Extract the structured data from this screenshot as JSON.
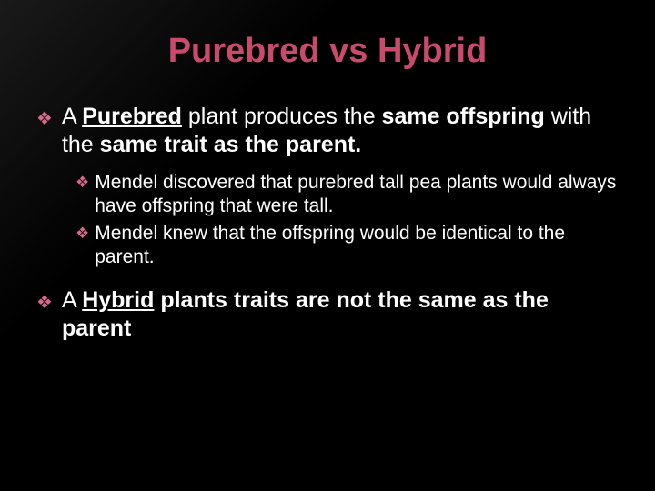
{
  "slide": {
    "title": {
      "word1": "Purebred",
      "word2": "vs",
      "word3": "Hybrid",
      "color": "#c94a6a",
      "fontsize": 38
    },
    "bullet_color": "#d9688a",
    "text_color": "#ffffff",
    "background_color": "#000000",
    "main_fontsize": 25,
    "sub_fontsize": 21,
    "bullets": [
      {
        "pre": "A ",
        "underlined": "Purebred",
        "mid": " plant produces the ",
        "bold1": "same offspring",
        "mid2": " with the ",
        "bold2": "same trait as the parent.",
        "sub": [
          "Mendel discovered that purebred tall pea plants would always have  offspring that were tall.",
          "Mendel knew that the  offspring would be  identical to the parent."
        ]
      },
      {
        "pre": "A ",
        "underlined": "Hybrid",
        "mid": " ",
        "bold1": "plants traits are not the same as the parent",
        "mid2": "",
        "bold2": "",
        "sub": []
      }
    ]
  }
}
